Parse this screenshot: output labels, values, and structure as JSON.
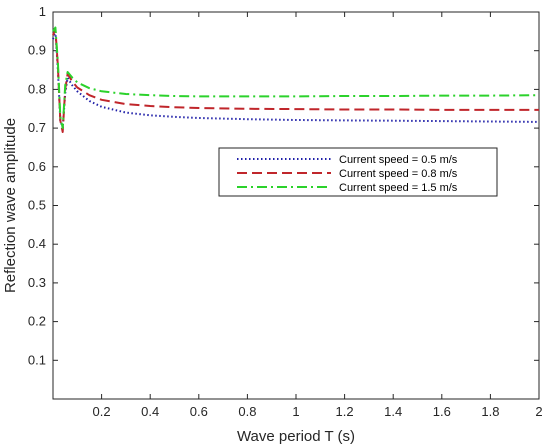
{
  "chart_data": {
    "type": "line",
    "title": "",
    "xlabel": "Wave period T (s)",
    "ylabel": "Reflection wave amplitude",
    "xlim": [
      0,
      2
    ],
    "ylim": [
      0,
      1
    ],
    "xticks": [
      0.2,
      0.4,
      0.6,
      0.8,
      1,
      1.2,
      1.4,
      1.6,
      1.8,
      2
    ],
    "yticks": [
      0.1,
      0.2,
      0.3,
      0.4,
      0.5,
      0.6,
      0.7,
      0.8,
      0.9,
      1
    ],
    "xtick_labels": [
      "0.2",
      "0.4",
      "0.6",
      "0.8",
      "1",
      "1.2",
      "1.4",
      "1.6",
      "1.8",
      "2"
    ],
    "ytick_labels": [
      "0.1",
      "0.2",
      "0.3",
      "0.4",
      "0.5",
      "0.6",
      "0.7",
      "0.8",
      "0.9",
      "1"
    ],
    "grid": false,
    "legend_position": "center-right",
    "series": [
      {
        "name": "Current speed = 0.5 m/s",
        "color": "#1f1fa8",
        "style": "dotted",
        "x": [
          0.0,
          0.01,
          0.02,
          0.03,
          0.04,
          0.05,
          0.06,
          0.08,
          0.1,
          0.15,
          0.2,
          0.3,
          0.4,
          0.5,
          0.6,
          0.8,
          1.0,
          1.2,
          1.4,
          1.6,
          1.8,
          2.0
        ],
        "y": [
          0.93,
          0.95,
          0.85,
          0.72,
          0.7,
          0.79,
          0.83,
          0.81,
          0.795,
          0.77,
          0.755,
          0.74,
          0.733,
          0.729,
          0.726,
          0.723,
          0.721,
          0.72,
          0.719,
          0.718,
          0.717,
          0.716
        ]
      },
      {
        "name": "Current speed = 0.8 m/s",
        "color": "#c0262b",
        "style": "dashed",
        "x": [
          0.0,
          0.01,
          0.02,
          0.03,
          0.04,
          0.05,
          0.06,
          0.08,
          0.1,
          0.15,
          0.2,
          0.3,
          0.4,
          0.5,
          0.6,
          0.8,
          1.0,
          1.2,
          1.4,
          1.6,
          1.8,
          2.0
        ],
        "y": [
          0.94,
          0.955,
          0.86,
          0.72,
          0.69,
          0.8,
          0.84,
          0.82,
          0.805,
          0.785,
          0.773,
          0.762,
          0.757,
          0.754,
          0.752,
          0.75,
          0.749,
          0.748,
          0.748,
          0.747,
          0.747,
          0.747
        ]
      },
      {
        "name": "Current speed = 1.5 m/s",
        "color": "#2bd22b",
        "style": "dashdot",
        "x": [
          0.0,
          0.01,
          0.02,
          0.03,
          0.04,
          0.05,
          0.06,
          0.08,
          0.1,
          0.15,
          0.2,
          0.3,
          0.4,
          0.5,
          0.6,
          0.8,
          1.0,
          1.2,
          1.4,
          1.6,
          1.8,
          2.0
        ],
        "y": [
          0.95,
          0.96,
          0.87,
          0.73,
          0.7,
          0.81,
          0.845,
          0.83,
          0.818,
          0.803,
          0.795,
          0.788,
          0.785,
          0.783,
          0.782,
          0.782,
          0.782,
          0.783,
          0.783,
          0.784,
          0.784,
          0.785
        ]
      }
    ]
  }
}
